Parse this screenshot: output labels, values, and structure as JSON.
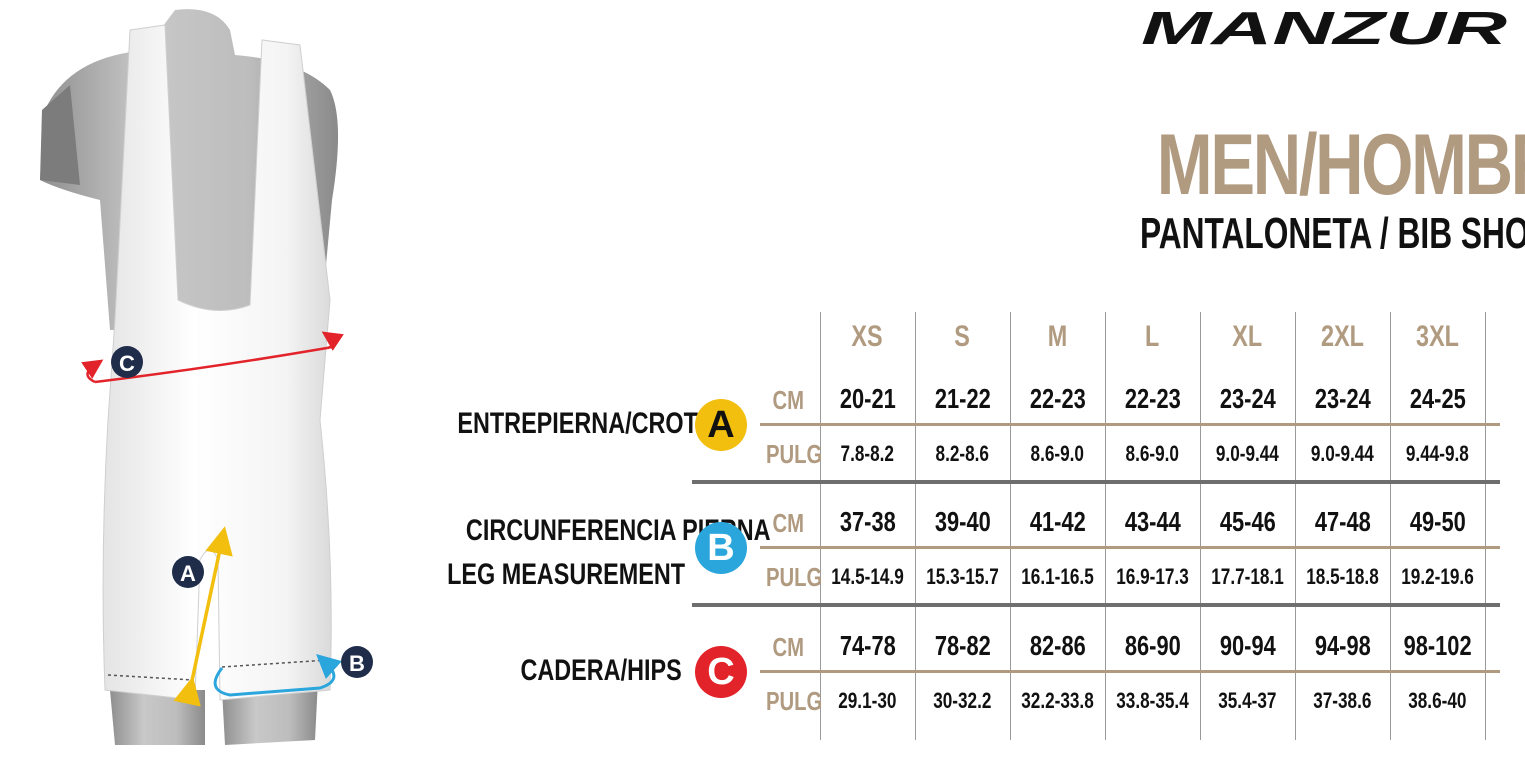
{
  "brand": "MANZUR",
  "title": "MEN/HOMBRE",
  "subtitle": "PANTALONETA / BIB SHORT",
  "sizes": [
    "XS",
    "S",
    "M",
    "L",
    "XL",
    "2XL",
    "3XL"
  ],
  "units": {
    "cm": "CM",
    "in": "PULG"
  },
  "figure_markers": {
    "a": "A",
    "b": "B",
    "c": "C"
  },
  "colors": {
    "tan": "#b09a80",
    "yellow": "#f2bf0f",
    "blue": "#2aa6dd",
    "red": "#e3232a",
    "navy": "#1f2d4a"
  },
  "measurements": [
    {
      "label_lines": [
        "ENTREPIERNA/CROTCH"
      ],
      "badge": "A",
      "cm": [
        "20-21",
        "21-22",
        "22-23",
        "22-23",
        "23-24",
        "23-24",
        "24-25"
      ],
      "in": [
        "7.8-8.2",
        "8.2-8.6",
        "8.6-9.0",
        "8.6-9.0",
        "9.0-9.44",
        "9.0-9.44",
        "9.44-9.8"
      ]
    },
    {
      "label_lines": [
        "CIRCUNFERENCIA PIERNA",
        "LEG MEASUREMENT"
      ],
      "badge": "B",
      "cm": [
        "37-38",
        "39-40",
        "41-42",
        "43-44",
        "45-46",
        "47-48",
        "49-50"
      ],
      "in": [
        "14.5-14.9",
        "15.3-15.7",
        "16.1-16.5",
        "16.9-17.3",
        "17.7-18.1",
        "18.5-18.8",
        "19.2-19.6"
      ]
    },
    {
      "label_lines": [
        "CADERA/HIPS"
      ],
      "badge": "C",
      "cm": [
        "74-78",
        "78-82",
        "82-86",
        "86-90",
        "90-94",
        "94-98",
        "98-102"
      ],
      "in": [
        "29.1-30",
        "30-32.2",
        "32.2-33.8",
        "33.8-35.4",
        "35.4-37",
        "37-38.6",
        "38.6-40"
      ]
    }
  ]
}
